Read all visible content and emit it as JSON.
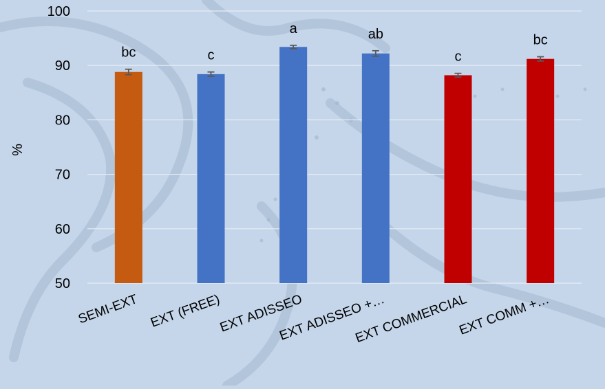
{
  "chart_data": {
    "type": "bar",
    "title": "",
    "xlabel": "",
    "ylabel": "%",
    "ylim": [
      50,
      100
    ],
    "yticks": [
      50,
      60,
      70,
      80,
      90,
      100
    ],
    "grid": true,
    "legend": "none",
    "categories": [
      "SEMI-EXT",
      "EXT (FREE)",
      "EXT ADISSEO",
      "EXT ADISSEO +…",
      "EXT COMMERCIAL",
      "EXT COMM +…"
    ],
    "values": [
      88.8,
      88.4,
      93.4,
      92.2,
      88.2,
      91.2
    ],
    "errors": [
      0.5,
      0.4,
      0.3,
      0.5,
      0.35,
      0.4
    ],
    "significance_labels": [
      "bc",
      "c",
      "a",
      "ab",
      "c",
      "bc"
    ],
    "bar_colors": [
      "#c55a11",
      "#4472c4",
      "#4472c4",
      "#4472c4",
      "#c00000",
      "#c00000"
    ]
  },
  "colors": {
    "background": "#c5d6ea",
    "gridline": "#e6edf6",
    "error_bar": "#595959",
    "text": "#000000"
  }
}
